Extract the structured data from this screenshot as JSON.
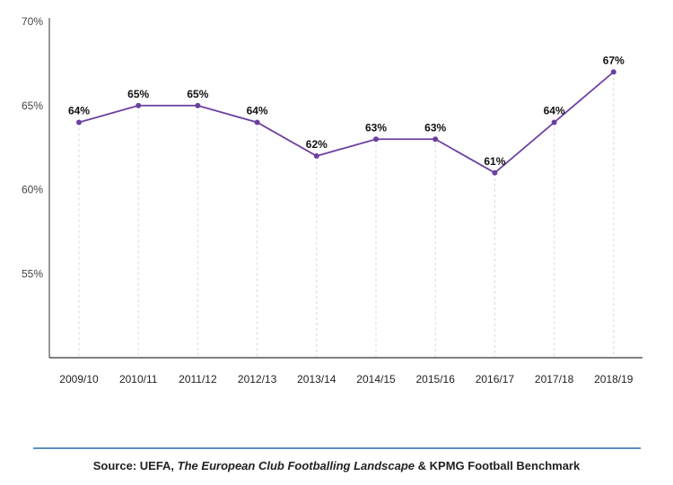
{
  "chart_data": {
    "type": "line",
    "categories": [
      "2009/10",
      "2010/11",
      "2011/12",
      "2012/13",
      "2013/14",
      "2014/15",
      "2015/16",
      "2016/17",
      "2017/18",
      "2018/19"
    ],
    "values": [
      64,
      65,
      65,
      64,
      62,
      63,
      63,
      61,
      64,
      67
    ],
    "data_labels": [
      "64%",
      "65%",
      "65%",
      "64%",
      "62%",
      "63%",
      "63%",
      "61%",
      "64%",
      "67%"
    ],
    "yticks": [
      55,
      60,
      65,
      70
    ],
    "ytick_labels": [
      "55%",
      "60%",
      "65%",
      "70%"
    ],
    "ylim": [
      50,
      70
    ],
    "grid": "vertical dashed drop lines",
    "line_color": "#6b3fa0"
  },
  "footer": {
    "source_prefix": "Source: UEFA, ",
    "source_title": "The European Club Footballing Landscape",
    "source_suffix": " & KPMG Football Benchmark",
    "rule_color": "#5b8fc0"
  }
}
